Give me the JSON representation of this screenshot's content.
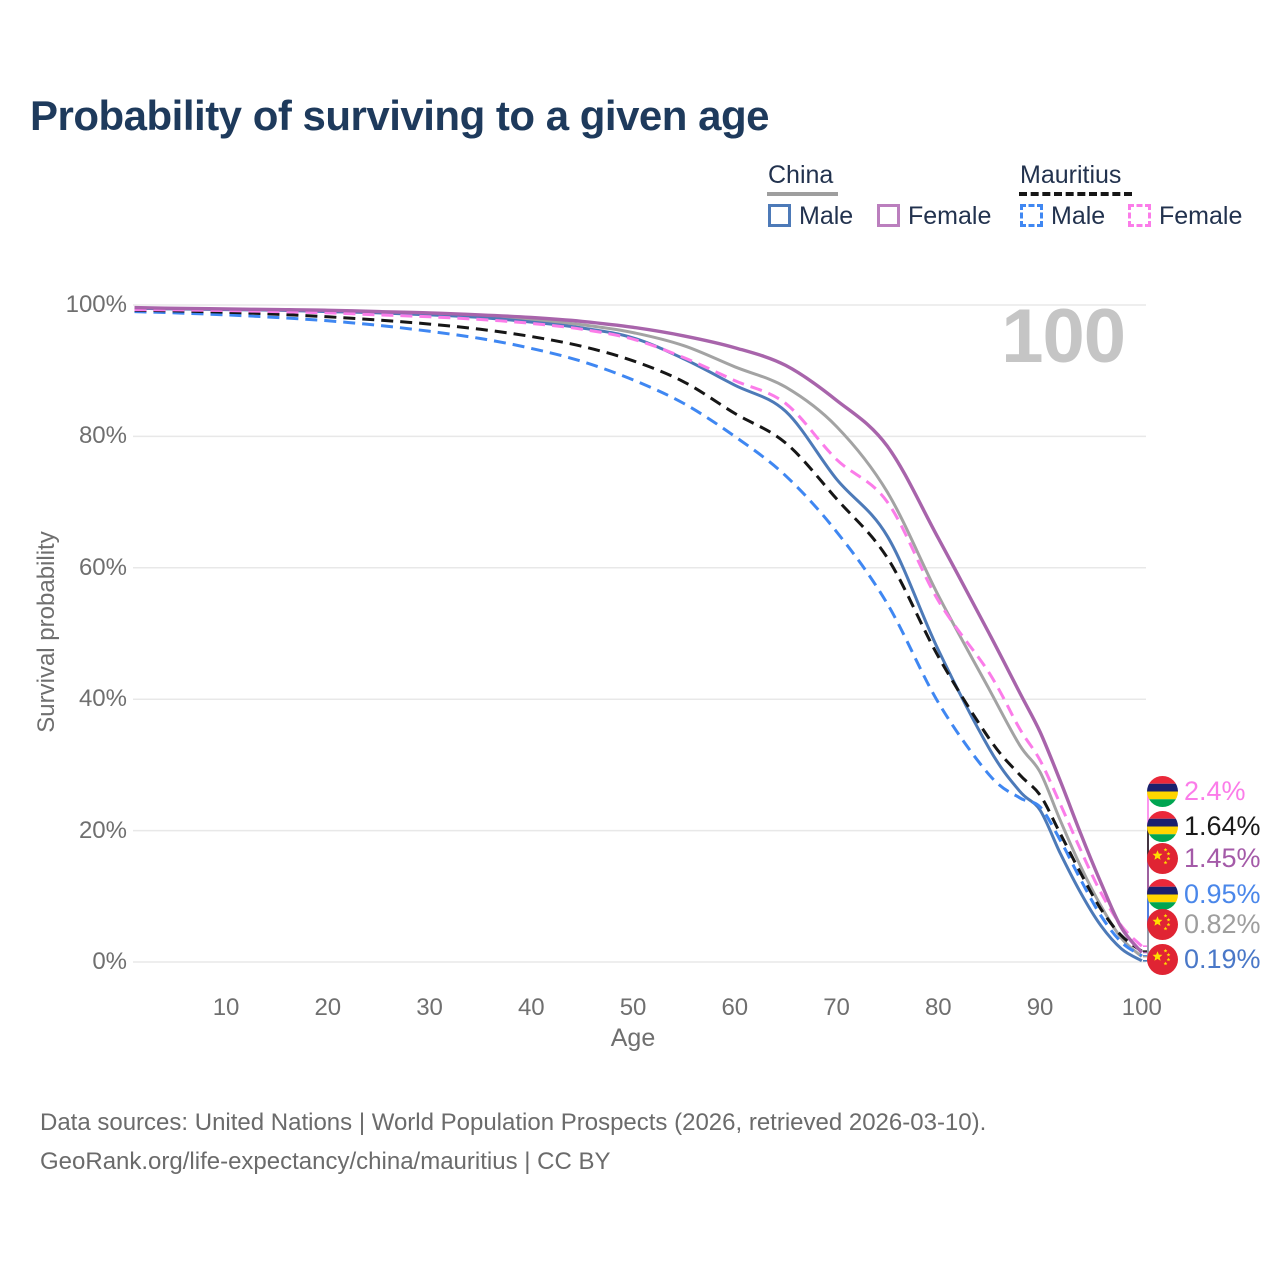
{
  "title": "Probability of surviving to a given age",
  "age_marker": "100",
  "legend": {
    "groups": [
      {
        "label": "China",
        "line_style": "solid",
        "line_color": "#9e9e9e",
        "items": [
          {
            "label": "Male",
            "color": "#4d7ab8",
            "dashed": false
          },
          {
            "label": "Female",
            "color": "#bb7fbe",
            "dashed": false
          }
        ]
      },
      {
        "label": "Mauritius",
        "line_style": "dashed",
        "line_color": "#161616",
        "items": [
          {
            "label": "Male",
            "color": "#3f87f2",
            "dashed": true
          },
          {
            "label": "Female",
            "color": "#fb7ce9",
            "dashed": true
          }
        ]
      }
    ]
  },
  "chart_data": {
    "type": "line",
    "title": "Probability of surviving to a given age",
    "xlabel": "Age",
    "ylabel": "Survival probability",
    "xlim": [
      1,
      100
    ],
    "ylim": [
      0,
      100
    ],
    "grid": "horizontal-only",
    "x_ticks": [
      10,
      20,
      30,
      40,
      50,
      60,
      70,
      80,
      90,
      100
    ],
    "y_tick_values": [
      0,
      20,
      40,
      60,
      80,
      100
    ],
    "y_tick_labels": [
      "0%",
      "20%",
      "40%",
      "60%",
      "80%",
      "100%"
    ],
    "x": [
      1,
      5,
      10,
      15,
      20,
      25,
      30,
      35,
      40,
      45,
      50,
      55,
      60,
      65,
      70,
      75,
      80,
      85,
      88,
      90,
      92,
      94,
      96,
      98,
      100
    ],
    "series": [
      {
        "name": "China",
        "country": "China",
        "sex": "Both",
        "color": "#a3a3a3",
        "dashed": false,
        "values": [
          99.5,
          99.4,
          99.35,
          99.25,
          99.1,
          98.9,
          98.6,
          98.2,
          97.7,
          97.0,
          95.8,
          93.8,
          90.6,
          87.5,
          81.5,
          71.5,
          55.8,
          41.5,
          33.0,
          28.9,
          21.5,
          14.5,
          8.5,
          3.6,
          0.82
        ]
      },
      {
        "name": "China Male",
        "country": "China",
        "sex": "Male",
        "color": "#4d7ab8",
        "dashed": false,
        "values": [
          99.5,
          99.4,
          99.3,
          99.2,
          99.0,
          98.8,
          98.5,
          98.1,
          97.4,
          96.5,
          95.0,
          91.8,
          87.8,
          83.8,
          73.5,
          64.8,
          47.5,
          32.5,
          26.0,
          23.1,
          16.5,
          10.5,
          5.5,
          2.0,
          0.19
        ]
      },
      {
        "name": "Mauritius Male",
        "country": "Mauritius",
        "sex": "Male",
        "color": "#3f87f2",
        "dashed": true,
        "values": [
          99.0,
          98.8,
          98.5,
          98.1,
          97.6,
          96.9,
          96.0,
          94.9,
          93.4,
          91.4,
          88.6,
          85.0,
          80.0,
          74.0,
          65.5,
          54.5,
          39.5,
          28.5,
          25.0,
          23.6,
          18.5,
          12.5,
          7.0,
          3.0,
          0.95
        ]
      },
      {
        "name": "Mauritius",
        "country": "Mauritius",
        "sex": "Both",
        "color": "#161616",
        "dashed": true,
        "values": [
          99.2,
          99.1,
          98.9,
          98.6,
          98.2,
          97.7,
          97.1,
          96.3,
          95.2,
          93.7,
          91.5,
          88.3,
          83.5,
          79.0,
          70.5,
          61.5,
          46.5,
          34.0,
          28.5,
          25.4,
          19.5,
          13.5,
          8.0,
          4.0,
          1.64
        ]
      },
      {
        "name": "Mauritius Female",
        "country": "Mauritius",
        "sex": "Female",
        "color": "#fb7ce9",
        "dashed": true,
        "values": [
          99.3,
          99.25,
          99.15,
          99.0,
          98.8,
          98.5,
          98.2,
          97.8,
          97.2,
          96.3,
          94.8,
          92.0,
          88.5,
          85.0,
          76.5,
          70.0,
          55.0,
          44.0,
          35.5,
          30.7,
          24.0,
          17.0,
          10.5,
          5.5,
          2.4
        ]
      },
      {
        "name": "China Female",
        "country": "China",
        "sex": "Female",
        "color": "#a864ab",
        "dashed": false,
        "values": [
          99.6,
          99.5,
          99.4,
          99.3,
          99.2,
          99.0,
          98.8,
          98.5,
          98.1,
          97.5,
          96.6,
          95.3,
          93.5,
          90.8,
          85.5,
          78.5,
          64.5,
          50.0,
          41.0,
          35.0,
          27.5,
          19.5,
          12.0,
          5.2,
          1.45
        ]
      }
    ]
  },
  "end_labels": [
    {
      "series": "Mauritius Female",
      "flag": "mauritius",
      "value": "2.4%",
      "color": "#fb7ce9"
    },
    {
      "series": "Mauritius",
      "flag": "mauritius",
      "value": "1.64%",
      "color": "#1a1a1a"
    },
    {
      "series": "China Female",
      "flag": "china",
      "value": "1.45%",
      "color": "#a45aa8"
    },
    {
      "series": "Mauritius Male",
      "flag": "mauritius",
      "value": "0.95%",
      "color": "#4a87ea"
    },
    {
      "series": "China",
      "flag": "china",
      "value": "0.82%",
      "color": "#9e9e9e"
    },
    {
      "series": "China Male",
      "flag": "china",
      "value": "0.19%",
      "color": "#4a78c8"
    }
  ],
  "flag_colors": {
    "china_red": "#e02433",
    "china_star_yellow": "#ffde00",
    "mauritius_red": "#ea2839",
    "mauritius_blue": "#1a206d",
    "mauritius_yellow": "#ffd500",
    "mauritius_green": "#00a551"
  },
  "footer": {
    "line1": "Data sources: United Nations | World Population Prospects (2026, retrieved 2026-03-10).",
    "line2": "GeoRank.org/life-expectancy/china/mauritius | CC BY"
  }
}
